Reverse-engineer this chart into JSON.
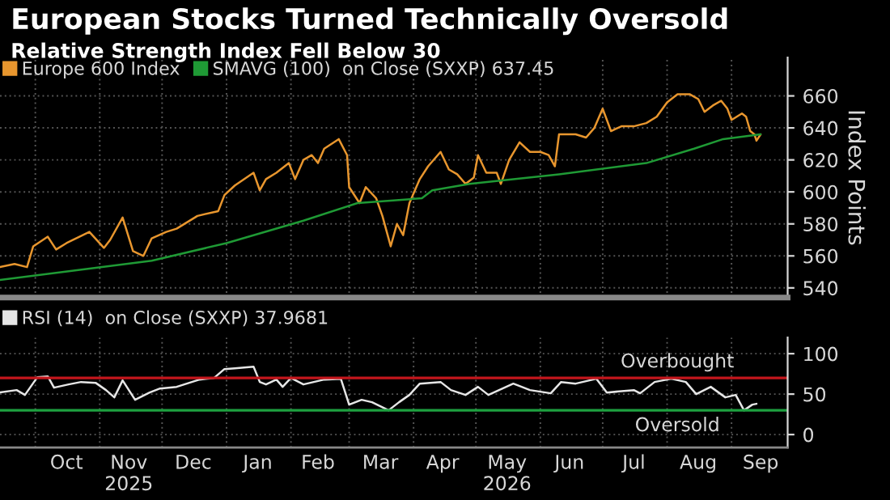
{
  "chart_data": [
    {
      "type": "line",
      "title": "European Stocks Turned Technically Oversold",
      "subtitle": "Relative Strength Index Fell Below 30",
      "ylabel": "Index Points",
      "legend": "top left",
      "grid": true,
      "tick_labels": "y",
      "xlim": [
        "2025-09-14",
        "2026-09-28"
      ],
      "ylim": [
        534,
        684
      ],
      "yticks": [
        540,
        560,
        580,
        600,
        620,
        640,
        660
      ],
      "xticks": [
        {
          "value": "2025-10-01",
          "label": null
        },
        {
          "value": "2025-11-01",
          "label": null
        },
        {
          "value": "2025-12-01",
          "label": null
        },
        {
          "value": "2026-01-01",
          "label": null
        },
        {
          "value": "2026-02-01",
          "label": null
        },
        {
          "value": "2026-03-01",
          "label": null
        },
        {
          "value": "2026-04-01",
          "label": null
        },
        {
          "value": "2026-05-01",
          "label": null
        },
        {
          "value": "2026-06-01",
          "label": null
        },
        {
          "value": "2026-07-01",
          "label": null
        },
        {
          "value": "2026-08-01",
          "label": null
        },
        {
          "value": "2026-09-01",
          "label": null
        }
      ],
      "series": [
        {
          "name": "Europe 600 Index",
          "color": "#e8962e",
          "x": [
            "2025-09-14",
            "2025-09-21",
            "2025-09-27",
            "2025-09-30",
            "2025-10-07",
            "2025-10-11",
            "2025-10-16",
            "2025-10-27",
            "2025-11-03",
            "2025-11-06",
            "2025-11-12",
            "2025-11-17",
            "2025-11-22",
            "2025-11-26",
            "2025-12-03",
            "2025-12-08",
            "2025-12-18",
            "2025-12-28",
            "2025-12-31",
            "2026-01-05",
            "2026-01-14",
            "2026-01-17",
            "2026-01-20",
            "2026-01-25",
            "2026-01-31",
            "2026-02-03",
            "2026-02-07",
            "2026-02-11",
            "2026-02-14",
            "2026-02-17",
            "2026-02-24",
            "2026-02-28",
            "2026-03-01",
            "2026-03-06",
            "2026-03-09",
            "2026-03-14",
            "2026-03-17",
            "2026-03-21",
            "2026-03-24",
            "2026-03-27",
            "2026-03-30",
            "2026-04-04",
            "2026-04-08",
            "2026-04-14",
            "2026-04-18",
            "2026-04-22",
            "2026-04-26",
            "2026-04-30",
            "2026-05-02",
            "2026-05-06",
            "2026-05-11",
            "2026-05-13",
            "2026-05-17",
            "2026-05-22",
            "2026-05-27",
            "2026-06-01",
            "2026-06-05",
            "2026-06-08",
            "2026-06-10",
            "2026-06-18",
            "2026-06-23",
            "2026-06-27",
            "2026-07-01",
            "2026-07-05",
            "2026-07-10",
            "2026-07-16",
            "2026-07-22",
            "2026-07-27",
            "2026-08-01",
            "2026-08-06",
            "2026-08-12",
            "2026-08-16",
            "2026-08-19",
            "2026-08-23",
            "2026-08-27",
            "2026-08-30",
            "2026-09-01",
            "2026-09-06",
            "2026-09-08",
            "2026-09-10",
            "2026-09-12",
            "2026-09-13",
            "2026-09-15"
          ],
          "values": [
            553,
            555,
            553,
            566,
            572,
            564,
            568,
            575,
            565,
            570,
            584,
            563,
            560,
            571,
            575,
            577,
            585,
            588,
            598,
            604,
            612,
            601,
            608,
            612,
            618,
            608,
            620,
            623,
            618,
            627,
            633,
            623,
            603,
            593,
            603,
            596,
            585,
            566,
            580,
            573,
            593,
            608,
            616,
            625,
            614,
            611,
            605,
            609,
            623,
            612,
            612,
            605,
            620,
            631,
            625,
            625,
            623,
            616,
            636,
            636,
            634,
            640,
            652,
            638,
            641,
            641,
            643,
            647,
            656,
            661,
            661,
            658,
            650,
            654,
            657,
            652,
            645,
            649,
            647,
            638,
            636,
            632,
            636
          ]
        },
        {
          "name": "SMAVG (100)  on Close (SXXP) 637.45",
          "color": "#1f9a35",
          "x": [
            "2025-09-14",
            "2025-11-26",
            "2026-01-01",
            "2026-02-07",
            "2026-03-05",
            "2026-04-05",
            "2026-04-10",
            "2026-04-28",
            "2026-06-10",
            "2026-07-22",
            "2026-08-14",
            "2026-08-28",
            "2026-09-15"
          ],
          "values": [
            545,
            557,
            568,
            582,
            593,
            596,
            601,
            605,
            611,
            618,
            627,
            633,
            636
          ]
        }
      ]
    },
    {
      "type": "line",
      "legend": "top left",
      "grid": true,
      "xlim": [
        "2025-09-14",
        "2026-09-28"
      ],
      "ylim": [
        -16,
        120
      ],
      "yticks": [
        0,
        50,
        100
      ],
      "xticks": [
        {
          "value": "2025-10-01",
          "label": null
        },
        {
          "value": "2025-10-16",
          "label": "Oct"
        },
        {
          "value": "2025-11-01",
          "label": null
        },
        {
          "value": "2025-11-15",
          "label": "Nov\n2025"
        },
        {
          "value": "2025-12-01",
          "label": null
        },
        {
          "value": "2025-12-16",
          "label": "Dec"
        },
        {
          "value": "2026-01-01",
          "label": null
        },
        {
          "value": "2026-01-16",
          "label": "Jan"
        },
        {
          "value": "2026-02-01",
          "label": null
        },
        {
          "value": "2026-02-14",
          "label": "Feb"
        },
        {
          "value": "2026-03-01",
          "label": null
        },
        {
          "value": "2026-03-16",
          "label": "Mar"
        },
        {
          "value": "2026-04-01",
          "label": null
        },
        {
          "value": "2026-04-15",
          "label": "Apr"
        },
        {
          "value": "2026-05-01",
          "label": null
        },
        {
          "value": "2026-05-16",
          "label": "May\n2026"
        },
        {
          "value": "2026-06-01",
          "label": null
        },
        {
          "value": "2026-06-15",
          "label": "Jun"
        },
        {
          "value": "2026-07-01",
          "label": null
        },
        {
          "value": "2026-07-16",
          "label": "Jul"
        },
        {
          "value": "2026-08-01",
          "label": null
        },
        {
          "value": "2026-08-16",
          "label": "Aug"
        },
        {
          "value": "2026-09-01",
          "label": null
        },
        {
          "value": "2026-09-15",
          "label": "Sep"
        }
      ],
      "ref_lines": [
        {
          "axis": "y",
          "value": 70,
          "label": "Overbought",
          "color": "#c4161c"
        },
        {
          "axis": "y",
          "value": 30,
          "label": "Oversold",
          "color": "#1ea040"
        }
      ],
      "series": [
        {
          "name": "RSI (14)  on Close (SXXP) 37.9681",
          "color": "#e6e6e6",
          "x": [
            "2025-09-14",
            "2025-09-22",
            "2025-09-26",
            "2025-10-02",
            "2025-10-07",
            "2025-10-10",
            "2025-10-17",
            "2025-10-23",
            "2025-10-30",
            "2025-11-04",
            "2025-11-08",
            "2025-11-12",
            "2025-11-18",
            "2025-11-25",
            "2025-11-30",
            "2025-12-08",
            "2025-12-19",
            "2025-12-26",
            "2025-12-31",
            "2026-01-05",
            "2026-01-14",
            "2026-01-17",
            "2026-01-20",
            "2026-01-25",
            "2026-01-28",
            "2026-02-01",
            "2026-02-07",
            "2026-02-17",
            "2026-02-25",
            "2026-03-01",
            "2026-03-07",
            "2026-03-12",
            "2026-03-20",
            "2026-03-25",
            "2026-03-30",
            "2026-04-04",
            "2026-04-14",
            "2026-04-19",
            "2026-04-26",
            "2026-05-02",
            "2026-05-07",
            "2026-05-19",
            "2026-05-27",
            "2026-06-06",
            "2026-06-11",
            "2026-06-18",
            "2026-06-28",
            "2026-07-03",
            "2026-07-16",
            "2026-07-19",
            "2026-07-26",
            "2026-08-03",
            "2026-08-10",
            "2026-08-15",
            "2026-08-22",
            "2026-08-29",
            "2026-09-03",
            "2026-09-07",
            "2026-09-11",
            "2026-09-13"
          ],
          "values": [
            52,
            55,
            49,
            71,
            72,
            58,
            62,
            65,
            64,
            55,
            46,
            67,
            43,
            52,
            57,
            59,
            68,
            70,
            81,
            82,
            84,
            65,
            62,
            68,
            59,
            70,
            62,
            68,
            69,
            37,
            43,
            40,
            30,
            40,
            49,
            63,
            65,
            55,
            49,
            59,
            49,
            63,
            55,
            51,
            65,
            63,
            69,
            52,
            55,
            51,
            65,
            69,
            65,
            50,
            59,
            46,
            49,
            30,
            37,
            38
          ]
        }
      ]
    }
  ]
}
